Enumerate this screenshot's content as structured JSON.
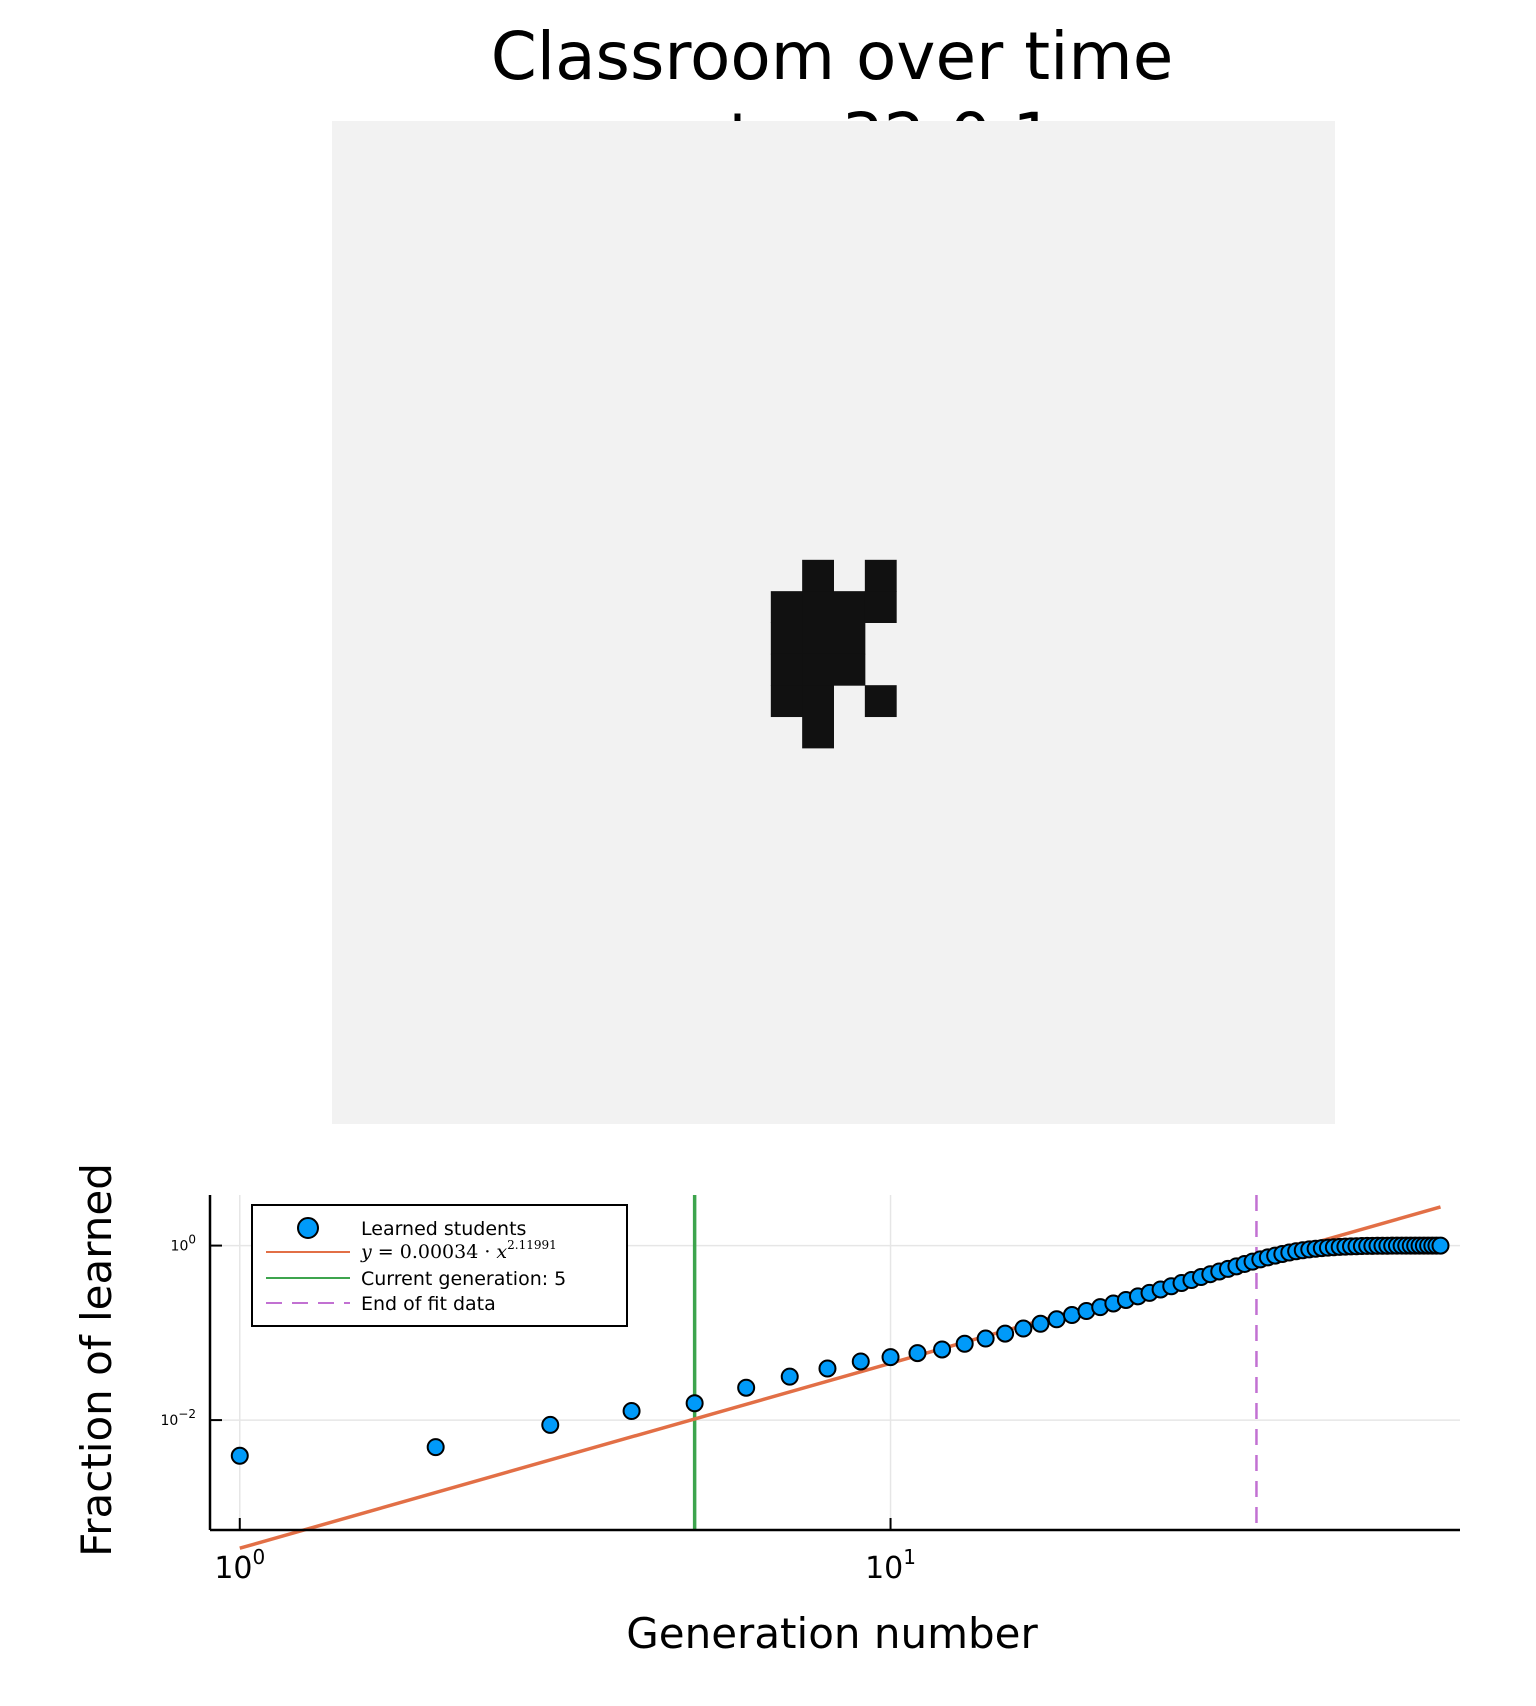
{
  "figure": {
    "title": [
      "Classroom over time",
      "center-32-0.1"
    ]
  },
  "heatmap": {
    "grid_size": 32,
    "background_color": "#f2f2f2",
    "learned_color": "#111111",
    "learned_cells": [
      [
        15,
        14
      ],
      [
        17,
        14
      ],
      [
        14,
        15
      ],
      [
        15,
        15
      ],
      [
        16,
        15
      ],
      [
        17,
        15
      ],
      [
        14,
        16
      ],
      [
        15,
        16
      ],
      [
        16,
        16
      ],
      [
        14,
        17
      ],
      [
        15,
        17
      ],
      [
        16,
        17
      ],
      [
        14,
        18
      ],
      [
        15,
        18
      ],
      [
        17,
        18
      ],
      [
        15,
        19
      ]
    ]
  },
  "chart_data": {
    "type": "scatter",
    "xlabel": "Generation number",
    "ylabel": "Fraction of learned",
    "x_scale": "log10",
    "y_scale": "log10",
    "xlim": [
      0.9,
      75
    ],
    "ylim": [
      0.00055,
      3.8
    ],
    "x_ticks": [
      {
        "value": 1,
        "base": "10",
        "exp": "0"
      },
      {
        "value": 10,
        "base": "10",
        "exp": "1"
      }
    ],
    "y_ticks": [
      {
        "value": 0.01,
        "base": "10",
        "exp": "−2"
      },
      {
        "value": 1,
        "base": "10",
        "exp": "0"
      }
    ],
    "grid": true,
    "legend_position": "top-left",
    "series": [
      {
        "name": "Learned students",
        "kind": "scatter",
        "color": "#009af9",
        "x": [
          1,
          2,
          3,
          4,
          5,
          6,
          7,
          8,
          9,
          10,
          11,
          12,
          13,
          14,
          15,
          16,
          17,
          18,
          19,
          20,
          21,
          22,
          23,
          24,
          25,
          26,
          27,
          28,
          29,
          30,
          31,
          32,
          33,
          34,
          35,
          36,
          37,
          38,
          39,
          40,
          41,
          42,
          43,
          44,
          45,
          46,
          47,
          48,
          49,
          50,
          51,
          52,
          53,
          54,
          55,
          56,
          57,
          58,
          59,
          60,
          61,
          62,
          63,
          64,
          65,
          66,
          67,
          68,
          69,
          70
        ],
        "y": [
          0.0039,
          0.0049,
          0.0088,
          0.0127,
          0.0156,
          0.0235,
          0.0315,
          0.039,
          0.047,
          0.0527,
          0.0586,
          0.0645,
          0.075,
          0.086,
          0.098,
          0.112,
          0.127,
          0.143,
          0.16,
          0.178,
          0.197,
          0.217,
          0.238,
          0.262,
          0.287,
          0.314,
          0.342,
          0.372,
          0.403,
          0.436,
          0.47,
          0.505,
          0.541,
          0.578,
          0.616,
          0.655,
          0.694,
          0.732,
          0.768,
          0.802,
          0.833,
          0.86,
          0.884,
          0.904,
          0.921,
          0.936,
          0.948,
          0.958,
          0.967,
          0.974,
          0.98,
          0.984,
          0.988,
          0.991,
          0.993,
          0.995,
          0.996,
          0.997,
          0.998,
          0.9985,
          0.999,
          0.9993,
          0.9995,
          0.9997,
          0.9998,
          0.9999,
          1.0,
          1.0,
          1.0,
          1.0
        ]
      },
      {
        "name": "y = 0.00034 · x^2.11991",
        "kind": "line",
        "color": "#e26f46",
        "coefficient": 0.00034,
        "exponent": 2.11991,
        "x_range": [
          1,
          70
        ]
      },
      {
        "name": "Current generation: 5",
        "kind": "vline",
        "color": "#3da44d",
        "x": 5
      },
      {
        "name": "End of fit data",
        "kind": "vline-dashed",
        "color": "#c271d2",
        "x": 36.5
      }
    ],
    "legend": {
      "entries": [
        {
          "label": "Learned students"
        },
        {
          "label_math": {
            "lhs": "y",
            "eq": " = 0.00034 · ",
            "var": "x",
            "exp": "2.11991"
          }
        },
        {
          "label": "Current generation: 5"
        },
        {
          "label": "End of fit data"
        }
      ]
    }
  }
}
